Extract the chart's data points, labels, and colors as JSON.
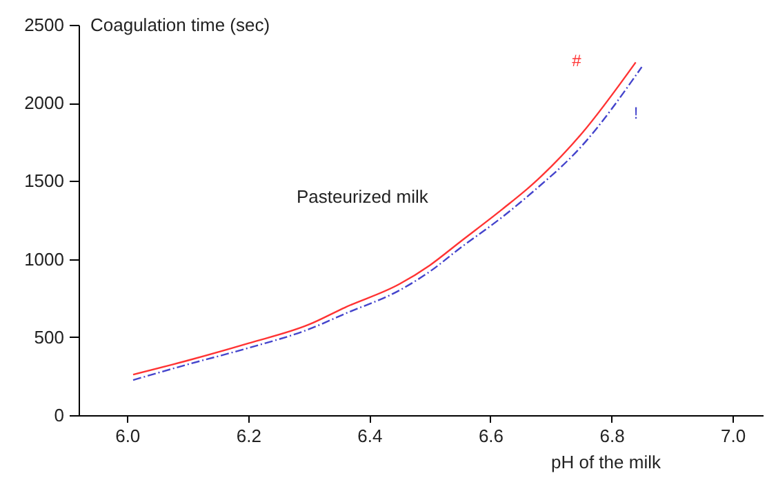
{
  "chart_data": {
    "type": "line",
    "xlabel": "pH of the milk",
    "ylabel": "Coagulation time (sec)",
    "xlim": [
      5.92,
      7.05
    ],
    "xticks": [
      {
        "value": 6.0,
        "label": "6.0"
      },
      {
        "value": 6.2,
        "label": "6.2"
      },
      {
        "value": 6.4,
        "label": "6.4"
      },
      {
        "value": 6.6,
        "label": "6.6"
      },
      {
        "value": 6.8,
        "label": "6.8"
      },
      {
        "value": 7.0,
        "label": "7.0"
      }
    ],
    "ylim": [
      0,
      2500
    ],
    "yticks": [
      0,
      500,
      1000,
      1500,
      2000,
      2500
    ],
    "annotations": [
      "Pasteurized milk",
      "#",
      "!"
    ],
    "series": [
      {
        "color": "#ff3333",
        "line_style": "solid",
        "x": [
          6.01,
          6.1,
          6.2,
          6.3,
          6.36,
          6.45,
          6.5,
          6.55,
          6.62,
          6.67,
          6.75,
          6.84
        ],
        "values": [
          260,
          350,
          460,
          580,
          690,
          840,
          960,
          1110,
          1320,
          1480,
          1800,
          2260
        ]
      },
      {
        "color": "#4444cc",
        "line_style": "dashed",
        "x": [
          6.01,
          6.1,
          6.2,
          6.3,
          6.36,
          6.45,
          6.5,
          6.55,
          6.62,
          6.67,
          6.75,
          6.85
        ],
        "values": [
          225,
          325,
          430,
          550,
          650,
          800,
          920,
          1070,
          1270,
          1430,
          1720,
          2230
        ]
      }
    ]
  }
}
